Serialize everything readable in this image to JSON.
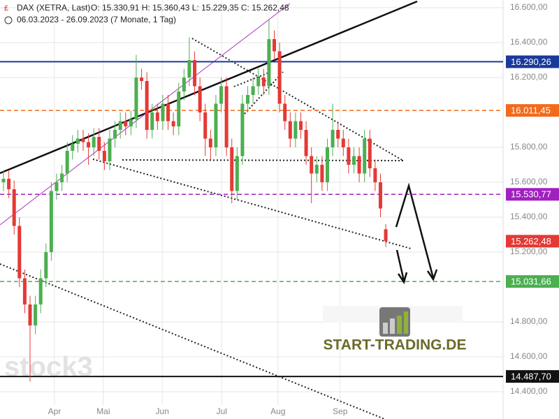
{
  "chart_data": {
    "type": "candlestick",
    "title": "DAX (XETRA, Last)",
    "ohlc_text": "O: 15.330,91  H: 15.360,43  L: 15.229,35  C: 15.262,48",
    "subtitle": "06.03.2023 - 26.09.2023 (7 Monate, 1 Tag)",
    "watermark": "stock3",
    "logo": "START-TRADING.DE",
    "up_color": "#4caf50",
    "down_color": "#e53935",
    "grid": true,
    "ylim": [
      14244,
      16644
    ],
    "xlim": [
      -0.66,
      94.1
    ],
    "yticks": [
      {
        "value": 16600,
        "label": "16.600,00"
      },
      {
        "value": 16400,
        "label": "16.400,00"
      },
      {
        "value": 16200,
        "label": "16.200,00"
      },
      {
        "value": 15800,
        "label": "15.800,00"
      },
      {
        "value": 15600,
        "label": "15.600,00"
      },
      {
        "value": 15400,
        "label": "15.400,00"
      },
      {
        "value": 15200,
        "label": "15.200,00"
      },
      {
        "value": 14800,
        "label": "14.800,00"
      },
      {
        "value": 14600,
        "label": "14.600,00"
      },
      {
        "value": 14400,
        "label": "14.400,00"
      }
    ],
    "xticks": [
      {
        "value": 9.6,
        "label": "Apr"
      },
      {
        "value": 18.8,
        "label": "Mai"
      },
      {
        "value": 29.9,
        "label": "Jun"
      },
      {
        "value": 41.1,
        "label": "Jul"
      },
      {
        "value": 51.7,
        "label": "Aug"
      },
      {
        "value": 63.4,
        "label": "Sep"
      }
    ],
    "levels": [
      {
        "value": 16290.26,
        "label": "16.290,26",
        "color": "#1a3a9a",
        "line": "solid"
      },
      {
        "value": 16011.45,
        "label": "16.011,45",
        "color": "#f26a1b",
        "line": "dashed"
      },
      {
        "value": 15530.77,
        "label": "15.530,77",
        "color": "#a020c0",
        "line": "dashed"
      },
      {
        "value": 15262.48,
        "label": "15.262,48",
        "color": "#e53935",
        "line": "none"
      },
      {
        "value": 15031.66,
        "label": "15.031,66",
        "color": "#4caf50",
        "line": "dashed"
      },
      {
        "value": 14487.7,
        "label": "14.487,70",
        "color": "#111111",
        "line": "solid"
      }
    ],
    "x": [
      0,
      1,
      2,
      3,
      4,
      5,
      6,
      7,
      8,
      9,
      10,
      11,
      12,
      13,
      14,
      15,
      16,
      17,
      18,
      19,
      20,
      21,
      22,
      23,
      24,
      25,
      26,
      27,
      28,
      29,
      30,
      31,
      32,
      33,
      34,
      35,
      36,
      37,
      38,
      39,
      40,
      41,
      42,
      43,
      44,
      45,
      46,
      47,
      48,
      49,
      50,
      51,
      52,
      53,
      54,
      55,
      56,
      57,
      58,
      59,
      60,
      61,
      62,
      63,
      64,
      65,
      66,
      67,
      68,
      69,
      70,
      71,
      72
    ],
    "open": [
      15600,
      15620,
      15560,
      15350,
      15050,
      14900,
      14780,
      14900,
      15050,
      15200,
      15550,
      15600,
      15650,
      15780,
      15820,
      15850,
      15830,
      15800,
      15860,
      15780,
      15720,
      15850,
      15900,
      15950,
      15920,
      15960,
      16200,
      16180,
      15900,
      16000,
      15950,
      16050,
      15950,
      15920,
      16120,
      16200,
      16300,
      16150,
      16000,
      15850,
      15800,
      16050,
      16150,
      15800,
      15550,
      15750,
      16050,
      16100,
      16150,
      16200,
      16150,
      16420,
      16350,
      16050,
      15950,
      15850,
      15950,
      15900,
      15750,
      15650,
      15700,
      15600,
      15800,
      15900,
      15850,
      15800,
      15700,
      15750,
      15650,
      15850,
      15680,
      15600,
      15330.91
    ],
    "high": [
      15670,
      15670,
      15610,
      15400,
      15100,
      14950,
      14950,
      15100,
      15250,
      15600,
      15650,
      15700,
      15830,
      15870,
      15900,
      15900,
      15880,
      15910,
      15910,
      15830,
      15900,
      15950,
      16000,
      16000,
      16010,
      16330,
      16250,
      16230,
      16050,
      16050,
      16100,
      16100,
      16000,
      16170,
      16250,
      16430,
      16350,
      16200,
      16050,
      15900,
      16100,
      16200,
      16200,
      15850,
      15800,
      16100,
      16150,
      16200,
      16250,
      16250,
      16530,
      16470,
      16400,
      16100,
      16000,
      16000,
      16000,
      15950,
      15800,
      15750,
      15750,
      15850,
      16050,
      15950,
      15900,
      15850,
      15800,
      15800,
      15900,
      15900,
      15730,
      15650,
      15360.43
    ],
    "low": [
      15550,
      15510,
      15300,
      15000,
      14850,
      14458,
      14730,
      14850,
      15000,
      15150,
      15500,
      15550,
      15600,
      15730,
      15770,
      15780,
      15700,
      15750,
      15730,
      15670,
      15670,
      15800,
      15850,
      15870,
      15870,
      15910,
      16130,
      15850,
      15850,
      15900,
      15900,
      15900,
      15870,
      15870,
      16070,
      16150,
      16100,
      15950,
      15750,
      15730,
      15750,
      16000,
      15750,
      15480,
      15500,
      15700,
      16000,
      16050,
      16100,
      16100,
      16100,
      16300,
      16000,
      15900,
      15800,
      15800,
      15850,
      15700,
      15480,
      15600,
      15550,
      15550,
      15750,
      15800,
      15750,
      15650,
      15650,
      15600,
      15600,
      15630,
      15550,
      15400,
      15229.35
    ],
    "close": [
      15620,
      15560,
      15350,
      15050,
      14900,
      14780,
      14900,
      15050,
      15200,
      15550,
      15600,
      15650,
      15780,
      15820,
      15850,
      15830,
      15800,
      15860,
      15780,
      15720,
      15850,
      15900,
      15950,
      15920,
      15960,
      16200,
      16180,
      15900,
      16000,
      15950,
      16050,
      15950,
      15920,
      16120,
      16200,
      16300,
      16150,
      16000,
      15850,
      15800,
      16050,
      16150,
      15800,
      15550,
      15750,
      16050,
      16100,
      16150,
      16200,
      16150,
      16420,
      16350,
      16050,
      15950,
      15850,
      15950,
      15900,
      15750,
      15650,
      15700,
      15600,
      15800,
      15900,
      15850,
      15800,
      15700,
      15750,
      15650,
      15850,
      15680,
      15600,
      15450,
      15262.48
    ]
  }
}
